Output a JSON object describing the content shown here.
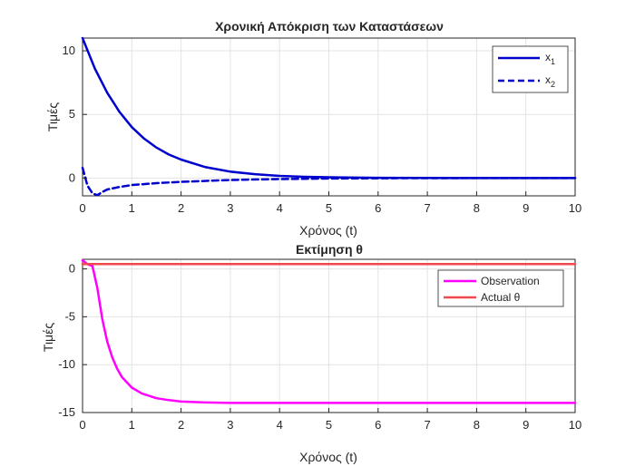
{
  "chart_data": [
    {
      "type": "line",
      "title": "Χρονική Απόκριση των Καταστάσεων",
      "xlabel": "Χρόνος (t)",
      "ylabel": "Τιμές",
      "xlim": [
        0,
        10
      ],
      "ylim": [
        -1.4,
        11
      ],
      "xticks": [
        0,
        1,
        2,
        3,
        4,
        5,
        6,
        7,
        8,
        9,
        10
      ],
      "yticks": [
        0,
        5,
        10
      ],
      "grid": true,
      "legend_position": "top-right",
      "series": [
        {
          "name": "x",
          "subscript": "1",
          "color": "#0000cd",
          "style": "solid",
          "x": [
            0,
            0.25,
            0.5,
            0.75,
            1,
            1.25,
            1.5,
            1.75,
            2,
            2.5,
            3,
            3.5,
            4,
            4.5,
            5,
            6,
            7,
            8,
            9,
            10
          ],
          "y": [
            11,
            8.6,
            6.7,
            5.2,
            4.0,
            3.1,
            2.4,
            1.85,
            1.45,
            0.85,
            0.5,
            0.3,
            0.17,
            0.1,
            0.06,
            0.02,
            0.01,
            0,
            0,
            0
          ]
        },
        {
          "name": "x",
          "subscript": "2",
          "color": "#0000cd",
          "style": "dashed",
          "x": [
            0,
            0.1,
            0.2,
            0.3,
            0.4,
            0.5,
            0.75,
            1,
            1.5,
            2,
            3,
            4,
            5,
            6,
            7,
            8,
            9,
            10
          ],
          "y": [
            0.8,
            -0.6,
            -1.2,
            -1.35,
            -1.1,
            -0.9,
            -0.7,
            -0.55,
            -0.4,
            -0.3,
            -0.15,
            -0.08,
            -0.04,
            -0.02,
            -0.01,
            0,
            0,
            0
          ]
        }
      ]
    },
    {
      "type": "line",
      "title": "Εκτίμηση θ",
      "xlabel": "Χρόνος (t)",
      "ylabel": "Τιμές",
      "xlim": [
        0,
        10
      ],
      "ylim": [
        -15,
        1
      ],
      "xticks": [
        0,
        1,
        2,
        3,
        4,
        5,
        6,
        7,
        8,
        9,
        10
      ],
      "yticks": [
        -15,
        -10,
        -5,
        0
      ],
      "grid": true,
      "legend_position": "top-right",
      "series": [
        {
          "name": "Observation",
          "color": "#ff00ff",
          "style": "solid",
          "x": [
            0,
            0.1,
            0.2,
            0.3,
            0.4,
            0.5,
            0.6,
            0.7,
            0.8,
            1,
            1.2,
            1.5,
            1.75,
            2,
            2.5,
            3,
            4,
            5,
            6,
            7,
            8,
            9,
            10
          ],
          "y": [
            0.9,
            0.5,
            0.3,
            -2.0,
            -5.2,
            -7.6,
            -9.2,
            -10.4,
            -11.3,
            -12.4,
            -13.0,
            -13.5,
            -13.7,
            -13.85,
            -13.95,
            -14.0,
            -14.0,
            -14.0,
            -14.0,
            -14.0,
            -14.0,
            -14.0,
            -14.0
          ]
        },
        {
          "name": "Actual θ",
          "color": "#f0484e",
          "style": "solid",
          "x": [
            0,
            10
          ],
          "y": [
            0.5,
            0.5
          ]
        }
      ]
    }
  ]
}
